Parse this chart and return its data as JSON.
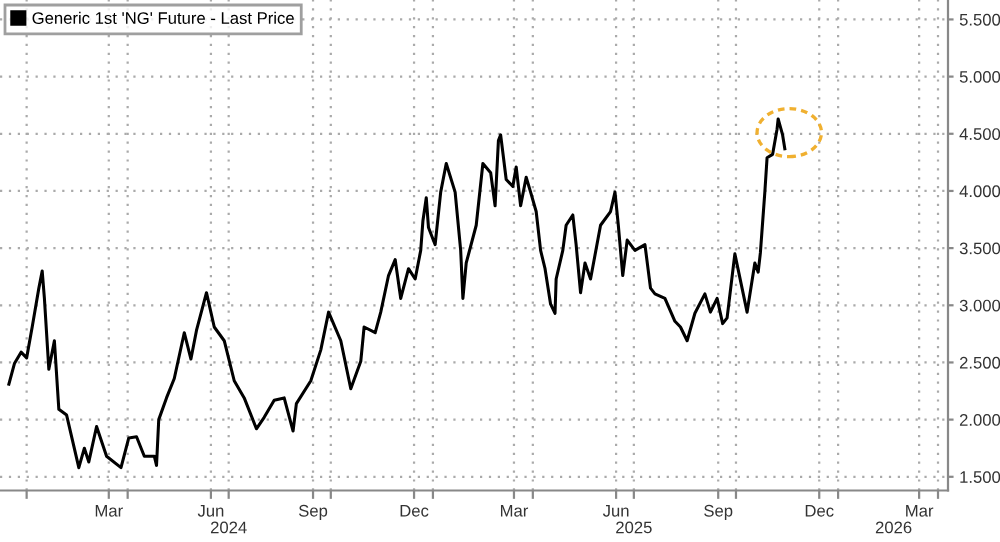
{
  "chart_data": {
    "type": "line",
    "legend": "top left",
    "grid": true,
    "marker": "none",
    "line_style": "solid",
    "xlim": [
      "2023-12-08",
      "2026-04-10"
    ],
    "xticks": [
      {
        "value": "2024-01-01",
        "label": null
      },
      {
        "value": "2024-03-15",
        "label": "Mar"
      },
      {
        "value": "2024-04-01",
        "label": null
      },
      {
        "value": "2024-06-15",
        "label": "Jun"
      },
      {
        "value": "2024-07-01",
        "label": null
      },
      {
        "value": "2024-09-15",
        "label": "Sep"
      },
      {
        "value": "2024-10-01",
        "label": null
      },
      {
        "value": "2024-12-15",
        "label": "Dec"
      },
      {
        "value": "2025-01-01",
        "label": null
      },
      {
        "value": "2025-03-15",
        "label": "Mar"
      },
      {
        "value": "2025-04-01",
        "label": null
      },
      {
        "value": "2025-06-15",
        "label": "Jun"
      },
      {
        "value": "2025-07-01",
        "label": null
      },
      {
        "value": "2025-09-15",
        "label": "Sep"
      },
      {
        "value": "2025-10-01",
        "label": null
      },
      {
        "value": "2025-12-15",
        "label": "Dec"
      },
      {
        "value": "2026-01-01",
        "label": null
      },
      {
        "value": "2026-03-15",
        "label": "Mar"
      },
      {
        "value": "2026-04-01",
        "label": null
      }
    ],
    "x2lim": [
      "2023-12-08",
      "2026-04-10"
    ],
    "x2ticks": [
      {
        "value": "2024-07-01",
        "label": "2024"
      },
      {
        "value": "2025-07-01",
        "label": "2025"
      },
      {
        "value": "2026-02-20",
        "label": "2026"
      }
    ],
    "ylim": [
      1.38,
      5.67
    ],
    "yticks": [
      {
        "value": 1.5,
        "label": "1.500"
      },
      {
        "value": 2.0,
        "label": "2.000"
      },
      {
        "value": 2.5,
        "label": "2.500"
      },
      {
        "value": 3.0,
        "label": "3.000"
      },
      {
        "value": 3.5,
        "label": "3.500"
      },
      {
        "value": 4.0,
        "label": "4.000"
      },
      {
        "value": 4.5,
        "label": "4.500"
      },
      {
        "value": 5.0,
        "label": "5.000"
      },
      {
        "value": 5.5,
        "label": "5.500"
      }
    ],
    "series": [
      {
        "name": "Generic 1st 'NG' Future - Last Price",
        "color": "#000000",
        "x": [
          "2023-12-16",
          "2023-12-21",
          "2023-12-27",
          "2024-01-01",
          "2024-01-06",
          "2024-01-12",
          "2024-01-15",
          "2024-01-17",
          "2024-01-21",
          "2024-01-26",
          "2024-01-30",
          "2024-02-06",
          "2024-02-17",
          "2024-02-22",
          "2024-02-26",
          "2024-03-04",
          "2024-03-13",
          "2024-03-26",
          "2024-04-02",
          "2024-04-09",
          "2024-04-16",
          "2024-04-25",
          "2024-04-27",
          "2024-04-29",
          "2024-05-06",
          "2024-05-13",
          "2024-05-22",
          "2024-05-28",
          "2024-06-02",
          "2024-06-11",
          "2024-06-18",
          "2024-06-27",
          "2024-07-06",
          "2024-07-15",
          "2024-07-26",
          "2024-08-02",
          "2024-08-11",
          "2024-08-20",
          "2024-08-28",
          "2024-08-31",
          "2024-09-13",
          "2024-09-22",
          "2024-09-29",
          "2024-10-10",
          "2024-10-19",
          "2024-10-28",
          "2024-10-31",
          "2024-11-10",
          "2024-11-15",
          "2024-11-22",
          "2024-11-28",
          "2024-12-03",
          "2024-12-10",
          "2024-12-16",
          "2024-12-21",
          "2024-12-23",
          "2024-12-26",
          "2024-12-28",
          "2025-01-03",
          "2025-01-08",
          "2025-01-13",
          "2025-01-21",
          "2025-01-26",
          "2025-01-28",
          "2025-01-31",
          "2025-02-09",
          "2025-02-15",
          "2025-02-22",
          "2025-02-26",
          "2025-03-01",
          "2025-03-03",
          "2025-03-08",
          "2025-03-14",
          "2025-03-17",
          "2025-03-21",
          "2025-03-26",
          "2025-03-30",
          "2025-04-04",
          "2025-04-08",
          "2025-04-12",
          "2025-04-17",
          "2025-04-21",
          "2025-04-22",
          "2025-04-28",
          "2025-05-01",
          "2025-05-07",
          "2025-05-10",
          "2025-05-14",
          "2025-05-18",
          "2025-05-23",
          "2025-06-01",
          "2025-06-10",
          "2025-06-14",
          "2025-06-17",
          "2025-06-21",
          "2025-06-25",
          "2025-07-02",
          "2025-07-11",
          "2025-07-16",
          "2025-07-20",
          "2025-07-29",
          "2025-08-07",
          "2025-08-12",
          "2025-08-18",
          "2025-08-25",
          "2025-09-03",
          "2025-09-08",
          "2025-09-14",
          "2025-09-19",
          "2025-09-23",
          "2025-09-30",
          "2025-10-11",
          "2025-10-18",
          "2025-10-21",
          "2025-10-23",
          "2025-10-27",
          "2025-10-29",
          "2025-11-03",
          "2025-11-07",
          "2025-11-08",
          "2025-11-12",
          "2025-11-14"
        ],
        "values": [
          2.31,
          2.49,
          2.59,
          2.54,
          2.81,
          3.15,
          3.3,
          3.06,
          2.44,
          2.69,
          2.09,
          2.04,
          1.58,
          1.75,
          1.63,
          1.94,
          1.68,
          1.58,
          1.84,
          1.85,
          1.68,
          1.68,
          1.6,
          2.0,
          2.19,
          2.36,
          2.76,
          2.53,
          2.78,
          3.11,
          2.81,
          2.69,
          2.34,
          2.19,
          1.92,
          2.02,
          2.17,
          2.19,
          1.9,
          2.14,
          2.34,
          2.61,
          2.94,
          2.69,
          2.27,
          2.51,
          2.81,
          2.76,
          2.94,
          3.26,
          3.4,
          3.06,
          3.32,
          3.23,
          3.48,
          3.74,
          3.94,
          3.68,
          3.53,
          3.99,
          4.24,
          3.99,
          3.48,
          3.06,
          3.37,
          3.7,
          4.24,
          4.16,
          3.87,
          4.44,
          4.49,
          4.1,
          4.04,
          4.21,
          3.87,
          4.12,
          3.99,
          3.82,
          3.48,
          3.32,
          3.01,
          2.93,
          3.23,
          3.48,
          3.7,
          3.79,
          3.53,
          3.11,
          3.37,
          3.23,
          3.7,
          3.82,
          3.99,
          3.7,
          3.26,
          3.57,
          3.48,
          3.53,
          3.15,
          3.1,
          3.06,
          2.86,
          2.81,
          2.69,
          2.93,
          3.1,
          2.94,
          3.06,
          2.84,
          2.89,
          3.45,
          2.94,
          3.37,
          3.29,
          3.46,
          3.99,
          4.29,
          4.32,
          4.54,
          4.63,
          4.49,
          4.37
        ]
      }
    ]
  }
}
